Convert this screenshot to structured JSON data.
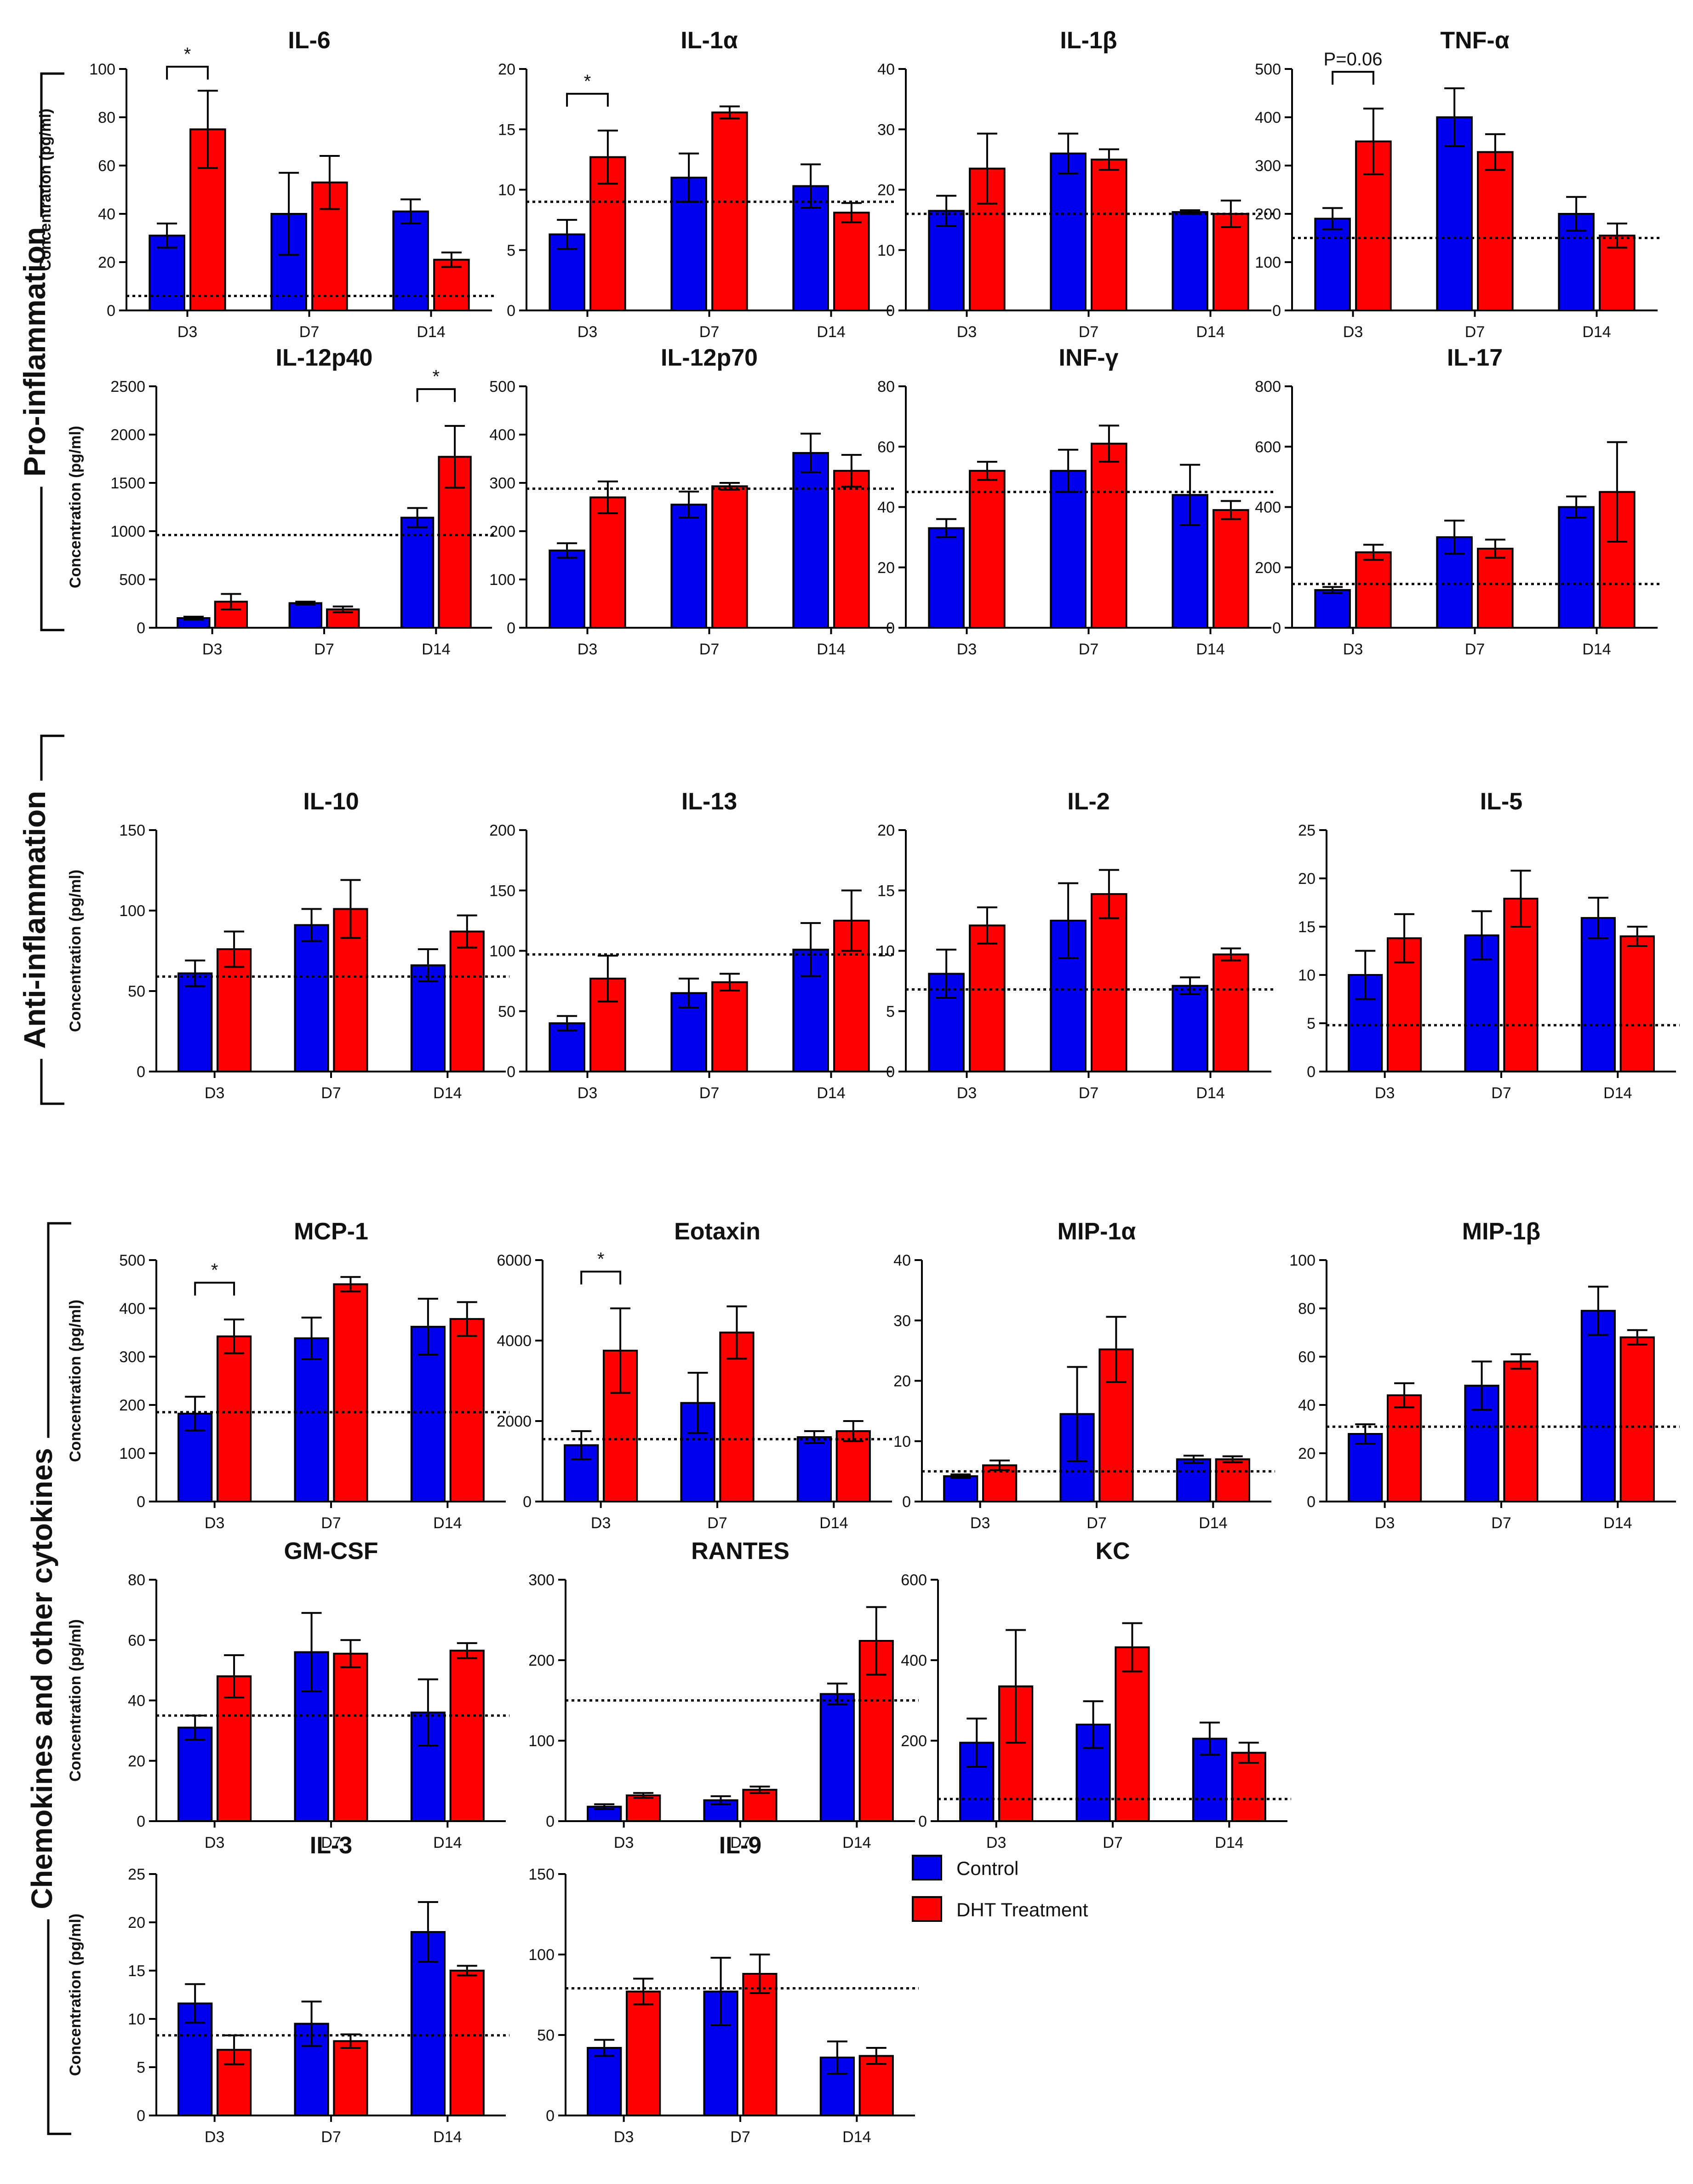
{
  "sections": [
    {
      "id": "pro",
      "label": "Pro-inflammation"
    },
    {
      "id": "anti",
      "label": "Anti-inflammation"
    },
    {
      "id": "chemo",
      "label": "Chemokines and other cytokines"
    }
  ],
  "legend": {
    "items": [
      {
        "label": "Control",
        "color": "#0000ee"
      },
      {
        "label": "DHT Treatment",
        "color": "#ff0000"
      }
    ]
  },
  "colors": {
    "control": "#0000ee",
    "dht": "#ff0000",
    "edge": "#000000"
  },
  "chart_data": [
    {
      "id": "il6",
      "type": "bar",
      "title": "IL-6",
      "ylabel": "Concentration (pg/ml)",
      "categories": [
        "D3",
        "D7",
        "D14"
      ],
      "ylim": [
        0,
        100
      ],
      "yticks": [
        0,
        20,
        40,
        60,
        80,
        100
      ],
      "series": [
        {
          "name": "Control",
          "values": [
            31,
            40,
            41
          ],
          "errors": [
            5,
            17,
            5
          ]
        },
        {
          "name": "DHT Treatment",
          "values": [
            75,
            53,
            21
          ],
          "errors": [
            16,
            11,
            3
          ]
        }
      ],
      "baseline": 6,
      "annotations": [
        {
          "category": "D3",
          "text": "*"
        }
      ]
    },
    {
      "id": "il1a",
      "type": "bar",
      "title": "IL-1α",
      "ylabel": "",
      "categories": [
        "D3",
        "D7",
        "D14"
      ],
      "ylim": [
        0,
        20
      ],
      "yticks": [
        0,
        5,
        10,
        15,
        20
      ],
      "series": [
        {
          "name": "Control",
          "values": [
            6.3,
            11,
            10.3
          ],
          "errors": [
            1.2,
            2,
            1.8
          ]
        },
        {
          "name": "DHT Treatment",
          "values": [
            12.7,
            16.4,
            8.1
          ],
          "errors": [
            2.2,
            0.5,
            0.8
          ]
        }
      ],
      "baseline": 9,
      "annotations": [
        {
          "category": "D3",
          "text": "*"
        }
      ]
    },
    {
      "id": "il1b",
      "type": "bar",
      "title": "IL-1β",
      "ylabel": "",
      "categories": [
        "D3",
        "D7",
        "D14"
      ],
      "ylim": [
        0,
        40
      ],
      "yticks": [
        0,
        10,
        20,
        30,
        40
      ],
      "series": [
        {
          "name": "Control",
          "values": [
            16.5,
            26,
            16.3
          ],
          "errors": [
            2.5,
            3.3,
            0.3
          ]
        },
        {
          "name": "DHT Treatment",
          "values": [
            23.5,
            25,
            16
          ],
          "errors": [
            5.8,
            1.7,
            2.2
          ]
        }
      ],
      "baseline": 16,
      "annotations": []
    },
    {
      "id": "tnfa",
      "type": "bar",
      "title": "TNF-α",
      "ylabel": "",
      "categories": [
        "D3",
        "D7",
        "D14"
      ],
      "ylim": [
        0,
        500
      ],
      "yticks": [
        0,
        100,
        200,
        300,
        400,
        500
      ],
      "series": [
        {
          "name": "Control",
          "values": [
            190,
            400,
            200
          ],
          "errors": [
            22,
            60,
            35
          ]
        },
        {
          "name": "DHT Treatment",
          "values": [
            350,
            328,
            155
          ],
          "errors": [
            68,
            37,
            25
          ]
        }
      ],
      "baseline": 150,
      "annotations": [
        {
          "category": "D3",
          "text": "P=0.06"
        }
      ]
    },
    {
      "id": "il12p40",
      "type": "bar",
      "title": "IL-12p40",
      "ylabel": "Concentration (pg/ml)",
      "categories": [
        "D3",
        "D7",
        "D14"
      ],
      "ylim": [
        0,
        2500
      ],
      "yticks": [
        0,
        500,
        1000,
        1500,
        2000,
        2500
      ],
      "series": [
        {
          "name": "Control",
          "values": [
            100,
            255,
            1140
          ],
          "errors": [
            15,
            15,
            100
          ]
        },
        {
          "name": "DHT Treatment",
          "values": [
            270,
            190,
            1770
          ],
          "errors": [
            80,
            30,
            320
          ]
        }
      ],
      "baseline": 960,
      "annotations": [
        {
          "category": "D14",
          "text": "*"
        }
      ]
    },
    {
      "id": "il12p70",
      "type": "bar",
      "title": "IL-12p70",
      "ylabel": "",
      "categories": [
        "D3",
        "D7",
        "D14"
      ],
      "ylim": [
        0,
        500
      ],
      "yticks": [
        0,
        100,
        200,
        300,
        400,
        500
      ],
      "series": [
        {
          "name": "Control",
          "values": [
            160,
            255,
            362
          ],
          "errors": [
            15,
            27,
            40
          ]
        },
        {
          "name": "DHT Treatment",
          "values": [
            270,
            293,
            325
          ],
          "errors": [
            33,
            7,
            33
          ]
        }
      ],
      "baseline": 288,
      "annotations": []
    },
    {
      "id": "infg",
      "type": "bar",
      "title": "INF-γ",
      "ylabel": "",
      "categories": [
        "D3",
        "D7",
        "D14"
      ],
      "ylim": [
        0,
        80
      ],
      "yticks": [
        0,
        20,
        40,
        60,
        80
      ],
      "series": [
        {
          "name": "Control",
          "values": [
            33,
            52,
            44
          ],
          "errors": [
            3,
            7,
            10
          ]
        },
        {
          "name": "DHT Treatment",
          "values": [
            52,
            61,
            39
          ],
          "errors": [
            3,
            6,
            3
          ]
        }
      ],
      "baseline": 45,
      "annotations": []
    },
    {
      "id": "il17",
      "type": "bar",
      "title": "IL-17",
      "ylabel": "",
      "categories": [
        "D3",
        "D7",
        "D14"
      ],
      "ylim": [
        0,
        800
      ],
      "yticks": [
        0,
        200,
        400,
        600,
        800
      ],
      "series": [
        {
          "name": "Control",
          "values": [
            125,
            300,
            400
          ],
          "errors": [
            10,
            55,
            35
          ]
        },
        {
          "name": "DHT Treatment",
          "values": [
            250,
            262,
            450
          ],
          "errors": [
            25,
            30,
            165
          ]
        }
      ],
      "baseline": 145,
      "annotations": []
    },
    {
      "id": "il10",
      "type": "bar",
      "title": "IL-10",
      "ylabel": "Concentration (pg/ml)",
      "categories": [
        "D3",
        "D7",
        "D14"
      ],
      "ylim": [
        0,
        150
      ],
      "yticks": [
        0,
        50,
        100,
        150
      ],
      "series": [
        {
          "name": "Control",
          "values": [
            61,
            91,
            66
          ],
          "errors": [
            8,
            10,
            10
          ]
        },
        {
          "name": "DHT Treatment",
          "values": [
            76,
            101,
            87
          ],
          "errors": [
            11,
            18,
            10
          ]
        }
      ],
      "baseline": 59,
      "annotations": []
    },
    {
      "id": "il13",
      "type": "bar",
      "title": "IL-13",
      "ylabel": "",
      "categories": [
        "D3",
        "D7",
        "D14"
      ],
      "ylim": [
        0,
        200
      ],
      "yticks": [
        0,
        50,
        100,
        150,
        200
      ],
      "series": [
        {
          "name": "Control",
          "values": [
            40,
            65,
            101
          ],
          "errors": [
            6,
            12,
            22
          ]
        },
        {
          "name": "DHT Treatment",
          "values": [
            77,
            74,
            125
          ],
          "errors": [
            19,
            7,
            25
          ]
        }
      ],
      "baseline": 97,
      "annotations": []
    },
    {
      "id": "il2",
      "type": "bar",
      "title": "IL-2",
      "ylabel": "",
      "categories": [
        "D3",
        "D7",
        "D14"
      ],
      "ylim": [
        0,
        20
      ],
      "yticks": [
        0,
        5,
        10,
        15,
        20
      ],
      "series": [
        {
          "name": "Control",
          "values": [
            8.1,
            12.5,
            7.1
          ],
          "errors": [
            2,
            3.1,
            0.7
          ]
        },
        {
          "name": "DHT Treatment",
          "values": [
            12.1,
            14.7,
            9.7
          ],
          "errors": [
            1.5,
            2,
            0.5
          ]
        }
      ],
      "baseline": 6.8,
      "annotations": []
    },
    {
      "id": "il5",
      "type": "bar",
      "title": "IL-5",
      "ylabel": "",
      "categories": [
        "D3",
        "D7",
        "D14"
      ],
      "ylim": [
        0,
        25
      ],
      "yticks": [
        0,
        5,
        10,
        15,
        20,
        25
      ],
      "series": [
        {
          "name": "Control",
          "values": [
            10,
            14.1,
            15.9
          ],
          "errors": [
            2.5,
            2.5,
            2.1
          ]
        },
        {
          "name": "DHT Treatment",
          "values": [
            13.8,
            17.9,
            14
          ],
          "errors": [
            2.5,
            2.9,
            1
          ]
        }
      ],
      "baseline": 4.8,
      "annotations": []
    },
    {
      "id": "mcp1",
      "type": "bar",
      "title": "MCP-1",
      "ylabel": "Concentration (pg/ml)",
      "categories": [
        "D3",
        "D7",
        "D14"
      ],
      "ylim": [
        0,
        500
      ],
      "yticks": [
        0,
        100,
        200,
        300,
        400,
        500
      ],
      "series": [
        {
          "name": "Control",
          "values": [
            182,
            338,
            362
          ],
          "errors": [
            35,
            43,
            58
          ]
        },
        {
          "name": "DHT Treatment",
          "values": [
            342,
            450,
            378
          ],
          "errors": [
            35,
            15,
            35
          ]
        }
      ],
      "baseline": 185,
      "annotations": [
        {
          "category": "D3",
          "text": "*"
        }
      ]
    },
    {
      "id": "eotaxin",
      "type": "bar",
      "title": "Eotaxin",
      "ylabel": "",
      "categories": [
        "D3",
        "D7",
        "D14"
      ],
      "ylim": [
        0,
        6000
      ],
      "yticks": [
        0,
        2000,
        4000,
        6000
      ],
      "series": [
        {
          "name": "Control",
          "values": [
            1400,
            2450,
            1600
          ],
          "errors": [
            350,
            750,
            150
          ]
        },
        {
          "name": "DHT Treatment",
          "values": [
            3750,
            4200,
            1750
          ],
          "errors": [
            1050,
            650,
            250
          ]
        }
      ],
      "baseline": 1550,
      "annotations": [
        {
          "category": "D3",
          "text": "*"
        }
      ]
    },
    {
      "id": "mip1a",
      "type": "bar",
      "title": "MIP-1α",
      "ylabel": "",
      "categories": [
        "D3",
        "D7",
        "D14"
      ],
      "ylim": [
        0,
        40
      ],
      "yticks": [
        0,
        10,
        20,
        30,
        40
      ],
      "series": [
        {
          "name": "Control",
          "values": [
            4.2,
            14.5,
            7
          ],
          "errors": [
            0.3,
            7.8,
            0.6
          ]
        },
        {
          "name": "DHT Treatment",
          "values": [
            6,
            25.2,
            7
          ],
          "errors": [
            0.8,
            5.4,
            0.5
          ]
        }
      ],
      "baseline": 5,
      "annotations": []
    },
    {
      "id": "mip1b",
      "type": "bar",
      "title": "MIP-1β",
      "ylabel": "",
      "categories": [
        "D3",
        "D7",
        "D14"
      ],
      "ylim": [
        0,
        100
      ],
      "yticks": [
        0,
        20,
        40,
        60,
        80,
        100
      ],
      "series": [
        {
          "name": "Control",
          "values": [
            28,
            48,
            79
          ],
          "errors": [
            4,
            10,
            10
          ]
        },
        {
          "name": "DHT Treatment",
          "values": [
            44,
            58,
            68
          ],
          "errors": [
            5,
            3,
            3
          ]
        }
      ],
      "baseline": 31,
      "annotations": []
    },
    {
      "id": "gmcsf",
      "type": "bar",
      "title": "GM-CSF",
      "ylabel": "Concentration (pg/ml)",
      "categories": [
        "D3",
        "D7",
        "D14"
      ],
      "ylim": [
        0,
        80
      ],
      "yticks": [
        0,
        20,
        40,
        60,
        80
      ],
      "series": [
        {
          "name": "Control",
          "values": [
            31,
            56,
            36
          ],
          "errors": [
            4,
            13,
            11
          ]
        },
        {
          "name": "DHT Treatment",
          "values": [
            48,
            55.5,
            56.5
          ],
          "errors": [
            7,
            4.5,
            2.5
          ]
        }
      ],
      "baseline": 35,
      "annotations": []
    },
    {
      "id": "rantes",
      "type": "bar",
      "title": "RANTES",
      "ylabel": "",
      "categories": [
        "D3",
        "D7",
        "D14"
      ],
      "ylim": [
        0,
        300
      ],
      "yticks": [
        0,
        100,
        200,
        300
      ],
      "series": [
        {
          "name": "Control",
          "values": [
            18,
            26,
            158
          ],
          "errors": [
            3,
            5,
            13
          ]
        },
        {
          "name": "DHT Treatment",
          "values": [
            32,
            39,
            224
          ],
          "errors": [
            3,
            4,
            42
          ]
        }
      ],
      "baseline": 150,
      "annotations": []
    },
    {
      "id": "kc",
      "type": "bar",
      "title": "KC",
      "ylabel": "",
      "categories": [
        "D3",
        "D7",
        "D14"
      ],
      "ylim": [
        0,
        600
      ],
      "yticks": [
        0,
        200,
        400,
        600
      ],
      "series": [
        {
          "name": "Control",
          "values": [
            195,
            240,
            205
          ],
          "errors": [
            60,
            58,
            40
          ]
        },
        {
          "name": "DHT Treatment",
          "values": [
            335,
            432,
            170
          ],
          "errors": [
            140,
            60,
            25
          ]
        }
      ],
      "baseline": 55,
      "annotations": []
    },
    {
      "id": "il3",
      "type": "bar",
      "title": "IL-3",
      "ylabel": "Concentration (pg/ml)",
      "categories": [
        "D3",
        "D7",
        "D14"
      ],
      "ylim": [
        0,
        25
      ],
      "yticks": [
        0,
        5,
        10,
        15,
        20,
        25
      ],
      "series": [
        {
          "name": "Control",
          "values": [
            11.6,
            9.5,
            19
          ],
          "errors": [
            2,
            2.3,
            3.1
          ]
        },
        {
          "name": "DHT Treatment",
          "values": [
            6.8,
            7.7,
            15
          ],
          "errors": [
            1.5,
            0.7,
            0.5
          ]
        }
      ],
      "baseline": 8.3,
      "annotations": []
    },
    {
      "id": "il9",
      "type": "bar",
      "title": "IL-9",
      "ylabel": "",
      "categories": [
        "D3",
        "D7",
        "D14"
      ],
      "ylim": [
        0,
        150
      ],
      "yticks": [
        0,
        50,
        100,
        150
      ],
      "series": [
        {
          "name": "Control",
          "values": [
            42,
            77,
            36
          ],
          "errors": [
            5,
            21,
            10
          ]
        },
        {
          "name": "DHT Treatment",
          "values": [
            77,
            88,
            37
          ],
          "errors": [
            8,
            12,
            5
          ]
        }
      ],
      "baseline": 79,
      "annotations": []
    }
  ]
}
